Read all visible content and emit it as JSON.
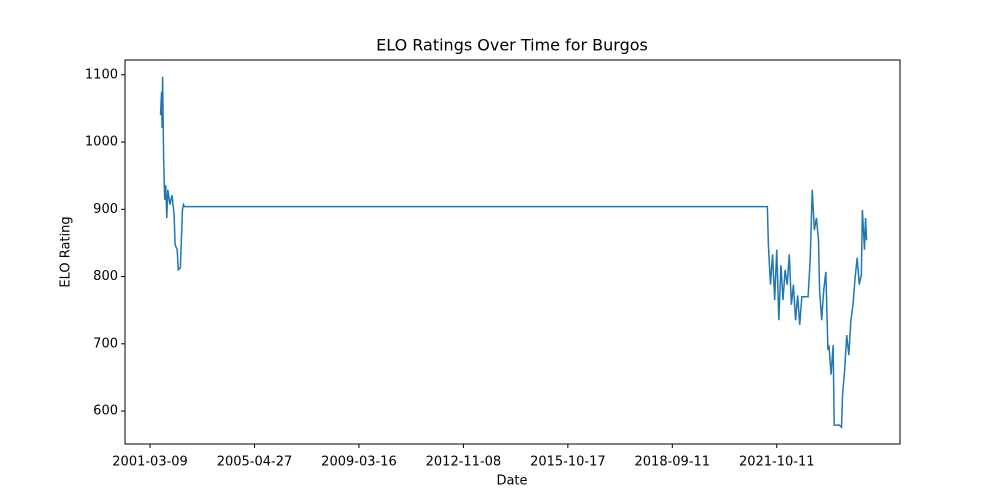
{
  "chart_data": {
    "type": "line",
    "title": "ELO Ratings Over Time for Burgos",
    "x_label": "Date",
    "y_label": "ELO Rating",
    "x": [
      10,
      11,
      11.5,
      12,
      13,
      14,
      15,
      16,
      17,
      19,
      21,
      23,
      24,
      26,
      27,
      29,
      31,
      32,
      33,
      591,
      592,
      594,
      596,
      598,
      600,
      602,
      604,
      606,
      608,
      610,
      612,
      614,
      616,
      618,
      620,
      622,
      624,
      627,
      630,
      632,
      634,
      636,
      638,
      640,
      641,
      643,
      645,
      647,
      649,
      650,
      652,
      654,
      655,
      660,
      662,
      663,
      665,
      667,
      669,
      671,
      673,
      675,
      677,
      679,
      681,
      682,
      684,
      685,
      686
    ],
    "series": [
      {
        "name": "Burgos",
        "color": "#1f77b4",
        "values": [
          1040,
          1075,
          1021,
          1097,
          974,
          914,
          936,
          887,
          929,
          907,
          921,
          892,
          847,
          840,
          810,
          813,
          899,
          907,
          904,
          904,
          847,
          788,
          833,
          765,
          840,
          735,
          817,
          765,
          810,
          788,
          833,
          758,
          788,
          735,
          772,
          728,
          770,
          770,
          770,
          825,
          929,
          869,
          887,
          854,
          780,
          735,
          780,
          807,
          691,
          698,
          654,
          698,
          579,
          579,
          576,
          624,
          661,
          713,
          683,
          735,
          758,
          798,
          828,
          788,
          803,
          899,
          840,
          887,
          854
        ]
      }
    ],
    "xlim": [
      -24,
      718
    ],
    "xticks": [
      {
        "value": 0,
        "label": "2001-03-09"
      },
      {
        "value": 100,
        "label": "2005-04-27"
      },
      {
        "value": 200,
        "label": "2009-03-16"
      },
      {
        "value": 300,
        "label": "2012-11-08"
      },
      {
        "value": 400,
        "label": "2015-10-17"
      },
      {
        "value": 500,
        "label": "2018-09-11"
      },
      {
        "value": 600,
        "label": "2021-10-11"
      }
    ],
    "ylim": [
      551,
      1122
    ],
    "yticks": [
      600,
      700,
      800,
      900,
      1000,
      1100
    ],
    "grid": false
  }
}
